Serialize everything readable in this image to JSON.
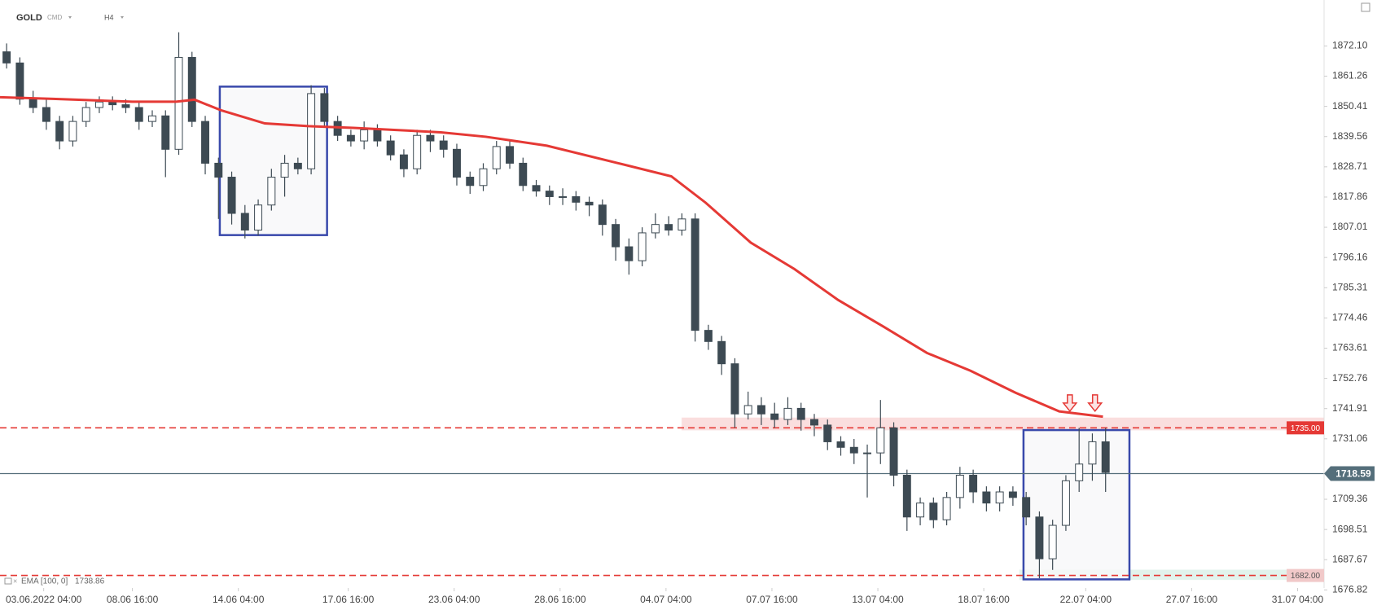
{
  "header": {
    "symbol": "GOLD",
    "market": "CMD",
    "interval": "H4"
  },
  "chart_data": {
    "type": "candlestick",
    "x": [
      0.5,
      1.5,
      2.5,
      3.5,
      4.5,
      5.5,
      6.5,
      7.5,
      8.5,
      9.5,
      10.5,
      11.5,
      12.5,
      13.5,
      14.5,
      15.5,
      16.5,
      17.5,
      18.5,
      19.5,
      20.5,
      21.5,
      22.5,
      23.5,
      24.5,
      25.5,
      26.5,
      27.5,
      28.5,
      29.5,
      30.5,
      31.5,
      32.5,
      33.5,
      34.5,
      35.5,
      36.5,
      37.5,
      38.5,
      39.5,
      40.5,
      41.5,
      42.5,
      43.5,
      44.5,
      45.5,
      46.5,
      47.5,
      48.5,
      49.5,
      50.5,
      51.5,
      52.5,
      53.5,
      54.5,
      55.5,
      56.5,
      57.5,
      58.5,
      59.5,
      60.5,
      61.5,
      62.5,
      63.5,
      64.5,
      65.5,
      66.5,
      67.5,
      68.5,
      69.5,
      70.5,
      71.5,
      72.5,
      73.5,
      74.5,
      75.5,
      76.5,
      77.5,
      78.5,
      79.5,
      80.5,
      81.5,
      82.5,
      83.5
    ],
    "open": [
      1870,
      1866,
      1853,
      1850,
      1845,
      1838,
      1845,
      1850,
      1852,
      1851,
      1850,
      1845,
      1847,
      1835,
      1868,
      1845,
      1830,
      1825,
      1812,
      1806,
      1815,
      1825,
      1830,
      1828,
      1855,
      1845,
      1840,
      1838,
      1842,
      1838,
      1833,
      1828,
      1840,
      1838,
      1835,
      1825,
      1822,
      1828,
      1836,
      1830,
      1822,
      1820,
      1818,
      1818,
      1816,
      1815,
      1808,
      1800,
      1795,
      1805,
      1808,
      1806,
      1810,
      1770,
      1766,
      1758,
      1740,
      1743,
      1740,
      1738,
      1742,
      1738,
      1736,
      1730,
      1728,
      1726,
      1726,
      1735,
      1718,
      1703,
      1708,
      1702,
      1710,
      1718,
      1712,
      1708,
      1712,
      1710,
      1703,
      1688,
      1700,
      1716,
      1722,
      1730
    ],
    "high": [
      1873,
      1868,
      1856,
      1853,
      1847,
      1847,
      1852,
      1854,
      1854,
      1853,
      1852,
      1849,
      1849,
      1877,
      1870,
      1847,
      1832,
      1827,
      1815,
      1817,
      1828,
      1833,
      1832,
      1858,
      1857,
      1847,
      1842,
      1845,
      1844,
      1840,
      1835,
      1842,
      1842,
      1840,
      1837,
      1827,
      1830,
      1838,
      1838,
      1832,
      1824,
      1822,
      1821,
      1820,
      1818,
      1817,
      1810,
      1803,
      1807,
      1812,
      1811,
      1812,
      1812,
      1772,
      1768,
      1760,
      1748,
      1746,
      1744,
      1746,
      1744,
      1740,
      1738,
      1732,
      1731,
      1729,
      1745,
      1737,
      1720,
      1710,
      1710,
      1712,
      1721,
      1720,
      1714,
      1714,
      1714,
      1712,
      1705,
      1702,
      1718,
      1735,
      1733,
      1735
    ],
    "low": [
      1864,
      1851,
      1848,
      1842,
      1835,
      1836,
      1843,
      1848,
      1849,
      1848,
      1842,
      1843,
      1825,
      1833,
      1843,
      1826,
      1810,
      1808,
      1803,
      1804,
      1813,
      1818,
      1826,
      1826,
      1843,
      1838,
      1836,
      1835,
      1836,
      1831,
      1825,
      1826,
      1834,
      1832,
      1822,
      1819,
      1820,
      1826,
      1828,
      1820,
      1818,
      1815,
      1815,
      1813,
      1811,
      1804,
      1795,
      1790,
      1793,
      1803,
      1804,
      1804,
      1766,
      1763,
      1754,
      1735,
      1738,
      1736,
      1735,
      1736,
      1734,
      1732,
      1727,
      1725,
      1722,
      1710,
      1722,
      1714,
      1698,
      1700,
      1699,
      1700,
      1706,
      1708,
      1705,
      1705,
      1707,
      1700,
      1681,
      1684,
      1698,
      1712,
      1716,
      1712
    ],
    "close": [
      1866,
      1853,
      1850,
      1845,
      1838,
      1845,
      1850,
      1852,
      1851,
      1850,
      1845,
      1847,
      1835,
      1868,
      1845,
      1830,
      1825,
      1812,
      1806,
      1815,
      1825,
      1830,
      1828,
      1855,
      1845,
      1840,
      1838,
      1842,
      1838,
      1833,
      1828,
      1840,
      1838,
      1835,
      1825,
      1822,
      1828,
      1836,
      1830,
      1822,
      1820,
      1818,
      1818,
      1816,
      1815,
      1808,
      1800,
      1795,
      1805,
      1808,
      1806,
      1810,
      1770,
      1766,
      1758,
      1740,
      1743,
      1740,
      1738,
      1742,
      1738,
      1736,
      1730,
      1728,
      1726,
      1726,
      1735,
      1718,
      1703,
      1708,
      1702,
      1710,
      1718,
      1712,
      1708,
      1712,
      1710,
      1703,
      1688,
      1700,
      1716,
      1722,
      1730,
      1719
    ],
    "up_color": "#ffffff",
    "down_color": "#3d4a53",
    "wick_color": "#3d4a53",
    "ema": {
      "name": "EMA [100, 0]",
      "last": 1738.86,
      "color": "#e53935",
      "x": [
        0,
        4,
        10,
        13.3,
        14.7,
        16.7,
        20,
        23.3,
        26.7,
        33.3,
        36.7,
        41.3,
        46.7,
        50.7,
        53.3,
        56.7,
        60,
        63.3,
        66.7,
        70,
        73.3,
        76.7,
        80,
        83.3
      ],
      "values": [
        1853.7,
        1853.1,
        1852.1,
        1852.1,
        1852.8,
        1849.0,
        1844.3,
        1843.3,
        1842.7,
        1841.1,
        1839.5,
        1836.3,
        1830.0,
        1825.3,
        1815.8,
        1801.5,
        1792.0,
        1780.9,
        1771.4,
        1761.9,
        1755.5,
        1747.6,
        1740.9,
        1739.0
      ]
    },
    "levels": [
      {
        "value": {
          "value": 1735,
          "label": "1735.00"
        },
        "color": "#e53935",
        "dashed": true
      },
      {
        "value": 1718.59,
        "color": "#546e7a",
        "dashed": false
      },
      {
        "value": {
          "value": 1682,
          "label": "1682.00"
        },
        "color": "#e53935",
        "dashed": true
      }
    ],
    "zones": [
      {
        "xlim": [
          51.5,
          100
        ],
        "ylim": [
          1734.2,
          1738.6
        ],
        "color": "#f9d6d6"
      },
      {
        "xlim": [
          77,
          100
        ],
        "ylim": [
          1680.5,
          1684
        ],
        "color": "#dcf1e8"
      }
    ],
    "boxes": [
      {
        "xlim": [
          16.6,
          24.7
        ],
        "ylim": [
          1804.2,
          1857.5
        ],
        "color": "#3949ab"
      },
      {
        "xlim": [
          77.3,
          85.3
        ],
        "ylim": [
          1680.6,
          1734.2
        ],
        "color": "#3949ab"
      }
    ],
    "arrows": [
      {
        "x": 80.8,
        "y": 1741,
        "color": "#e53935"
      },
      {
        "x": 82.7,
        "y": 1741,
        "color": "#e53935"
      }
    ],
    "xlim": [
      0,
      100
    ],
    "xticks": [
      {
        "value": 3.3,
        "label": "03.06.2022 04:00"
      },
      {
        "value": 10,
        "label": "08.06 16:00"
      },
      {
        "value": 18,
        "label": "14.06 04:00"
      },
      {
        "value": 26.3,
        "label": "17.06 16:00"
      },
      {
        "value": 34.3,
        "label": "23.06 04:00"
      },
      {
        "value": 42.3,
        "label": "28.06 16:00"
      },
      {
        "value": 50.3,
        "label": "04.07 04:00"
      },
      {
        "value": 58.3,
        "label": "07.07 16:00"
      },
      {
        "value": 66.3,
        "label": "13.07 04:00"
      },
      {
        "value": 74.3,
        "label": "18.07 16:00"
      },
      {
        "value": 82,
        "label": "22.07 04:00"
      },
      {
        "value": 90,
        "label": "27.07 16:00"
      },
      {
        "value": 98,
        "label": "31.07 04:00"
      }
    ],
    "ylim": [
      1677.5,
      1888.6
    ],
    "yticks": [
      {
        "value": 1872.1,
        "label": "1872.10"
      },
      1861.26,
      1850.41,
      1839.56,
      1828.71,
      1817.86,
      1807.01,
      1796.16,
      1785.31,
      1774.46,
      1763.61,
      1752.76,
      1741.91,
      1731.06,
      1709.36,
      1698.51,
      1687.67,
      1676.82
    ],
    "grid": false
  }
}
